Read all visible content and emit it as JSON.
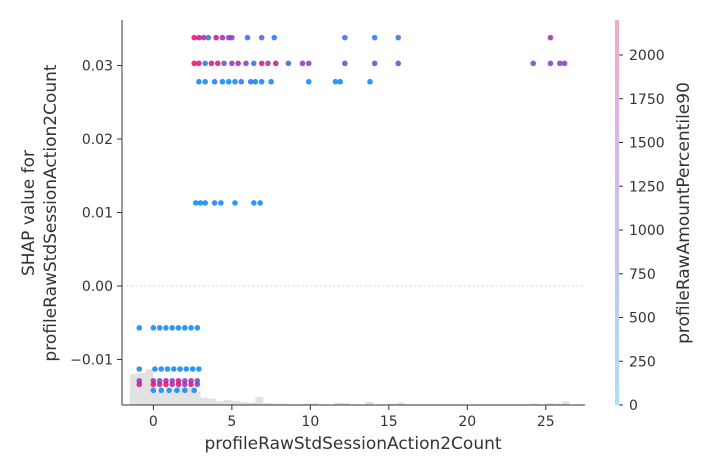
{
  "chart_data": {
    "type": "scatter",
    "title": "",
    "xlabel": "profileRawStdSessionAction2Count",
    "ylabel_line1": "SHAP value for",
    "ylabel_line2": "profileRawStdSessionAction2Count",
    "colorbar_label": "profileRawAmountPercentile90",
    "xlim": [
      -2.0,
      27.5
    ],
    "ylim": [
      -0.0162,
      0.0362
    ],
    "x_ticks": [
      0,
      5,
      10,
      15,
      20,
      25
    ],
    "x_tick_labels": [
      "0",
      "5",
      "10",
      "15",
      "20",
      "25"
    ],
    "y_ticks": [
      -0.01,
      0.0,
      0.01,
      0.02,
      0.03
    ],
    "y_tick_labels": [
      "−0.01",
      "0.00",
      "0.01",
      "0.02",
      "0.03"
    ],
    "zero_line": 0.0,
    "colorbar": {
      "range": [
        0,
        2200
      ],
      "ticks": [
        0,
        250,
        500,
        750,
        1000,
        1250,
        1500,
        1750,
        2000
      ],
      "tick_labels": [
        "0",
        "250",
        "500",
        "750",
        "1000",
        "1250",
        "1500",
        "1750",
        "2000"
      ]
    },
    "colors": {
      "low": "#008bfb",
      "mid": "#8b35c4",
      "high": "#ff0052",
      "hist": "#e2e2e2",
      "axis": "#333333",
      "zero_line": "#cccccc"
    },
    "histogram": [
      {
        "x0": -1.5,
        "x1": -1.0,
        "frac": 0.5
      },
      {
        "x0": -1.0,
        "x1": -0.5,
        "frac": 0.52
      },
      {
        "x0": -0.5,
        "x1": 0.0,
        "frac": 0.58
      },
      {
        "x0": 0.0,
        "x1": 0.5,
        "frac": 0.22
      },
      {
        "x0": 0.5,
        "x1": 1.0,
        "frac": 0.22
      },
      {
        "x0": 1.0,
        "x1": 1.5,
        "frac": 0.26
      },
      {
        "x0": 1.5,
        "x1": 2.0,
        "frac": 0.3
      },
      {
        "x0": 2.0,
        "x1": 2.5,
        "frac": 0.28
      },
      {
        "x0": 2.5,
        "x1": 3.0,
        "frac": 0.22
      },
      {
        "x0": 3.0,
        "x1": 3.5,
        "frac": 0.12
      },
      {
        "x0": 3.5,
        "x1": 4.0,
        "frac": 0.1
      },
      {
        "x0": 4.0,
        "x1": 4.5,
        "frac": 0.06
      },
      {
        "x0": 4.5,
        "x1": 5.0,
        "frac": 0.08
      },
      {
        "x0": 5.0,
        "x1": 5.5,
        "frac": 0.07
      },
      {
        "x0": 5.5,
        "x1": 6.0,
        "frac": 0.05
      },
      {
        "x0": 6.0,
        "x1": 6.5,
        "frac": 0.04
      },
      {
        "x0": 6.5,
        "x1": 7.0,
        "frac": 0.13
      },
      {
        "x0": 7.0,
        "x1": 7.5,
        "frac": 0.03
      },
      {
        "x0": 7.5,
        "x1": 8.0,
        "frac": 0.02
      },
      {
        "x0": 8.0,
        "x1": 8.5,
        "frac": 0.02
      },
      {
        "x0": 9.5,
        "x1": 10.0,
        "frac": 0.02
      },
      {
        "x0": 10.0,
        "x1": 10.5,
        "frac": 0.03
      },
      {
        "x0": 11.5,
        "x1": 12.0,
        "frac": 0.04
      },
      {
        "x0": 12.0,
        "x1": 12.5,
        "frac": 0.03
      },
      {
        "x0": 13.5,
        "x1": 14.0,
        "frac": 0.05
      },
      {
        "x0": 15.0,
        "x1": 15.5,
        "frac": 0.02
      },
      {
        "x0": 15.5,
        "x1": 16.0,
        "frac": 0.04
      },
      {
        "x0": 24.0,
        "x1": 24.5,
        "frac": 0.02
      },
      {
        "x0": 25.0,
        "x1": 25.5,
        "frac": 0.03
      },
      {
        "x0": 25.5,
        "x1": 26.0,
        "frac": 0.02
      },
      {
        "x0": 26.0,
        "x1": 26.5,
        "frac": 0.06
      }
    ],
    "points": [
      {
        "x": 2.6,
        "y": 0.0338,
        "c": 2000
      },
      {
        "x": 2.9,
        "y": 0.0338,
        "c": 1700
      },
      {
        "x": 3.2,
        "y": 0.0338,
        "c": 1500
      },
      {
        "x": 3.5,
        "y": 0.0338,
        "c": 600
      },
      {
        "x": 4.0,
        "y": 0.0338,
        "c": 1800
      },
      {
        "x": 4.4,
        "y": 0.0338,
        "c": 1300
      },
      {
        "x": 4.8,
        "y": 0.0338,
        "c": 1100
      },
      {
        "x": 5.0,
        "y": 0.0338,
        "c": 900
      },
      {
        "x": 6.0,
        "y": 0.0338,
        "c": 400
      },
      {
        "x": 6.9,
        "y": 0.0338,
        "c": 500
      },
      {
        "x": 7.7,
        "y": 0.0338,
        "c": 300
      },
      {
        "x": 12.2,
        "y": 0.0338,
        "c": 300
      },
      {
        "x": 14.1,
        "y": 0.0338,
        "c": 250
      },
      {
        "x": 15.6,
        "y": 0.0338,
        "c": 350
      },
      {
        "x": 25.3,
        "y": 0.0338,
        "c": 1300
      },
      {
        "x": 2.6,
        "y": 0.0303,
        "c": 2000
      },
      {
        "x": 2.9,
        "y": 0.0303,
        "c": 1900
      },
      {
        "x": 3.3,
        "y": 0.0303,
        "c": 200
      },
      {
        "x": 3.7,
        "y": 0.0303,
        "c": 1800
      },
      {
        "x": 4.1,
        "y": 0.0303,
        "c": 2000
      },
      {
        "x": 4.5,
        "y": 0.0303,
        "c": 900
      },
      {
        "x": 5.0,
        "y": 0.0303,
        "c": 1000
      },
      {
        "x": 5.4,
        "y": 0.0303,
        "c": 1400
      },
      {
        "x": 5.9,
        "y": 0.0303,
        "c": 1000
      },
      {
        "x": 6.4,
        "y": 0.0303,
        "c": 300
      },
      {
        "x": 6.9,
        "y": 0.0303,
        "c": 2000
      },
      {
        "x": 7.3,
        "y": 0.0303,
        "c": 1200
      },
      {
        "x": 7.8,
        "y": 0.0303,
        "c": 1900
      },
      {
        "x": 8.6,
        "y": 0.0303,
        "c": 700
      },
      {
        "x": 9.5,
        "y": 0.0303,
        "c": 1200
      },
      {
        "x": 9.9,
        "y": 0.0303,
        "c": 1000
      },
      {
        "x": 12.2,
        "y": 0.0303,
        "c": 1000
      },
      {
        "x": 14.1,
        "y": 0.0303,
        "c": 1000
      },
      {
        "x": 15.6,
        "y": 0.0303,
        "c": 1000
      },
      {
        "x": 24.2,
        "y": 0.0303,
        "c": 1000
      },
      {
        "x": 25.3,
        "y": 0.0303,
        "c": 1000
      },
      {
        "x": 25.9,
        "y": 0.0303,
        "c": 1000
      },
      {
        "x": 26.2,
        "y": 0.0303,
        "c": 1000
      },
      {
        "x": 2.9,
        "y": 0.0278,
        "c": 100
      },
      {
        "x": 3.3,
        "y": 0.0278,
        "c": 50
      },
      {
        "x": 3.9,
        "y": 0.0278,
        "c": 200
      },
      {
        "x": 4.4,
        "y": 0.0278,
        "c": 100
      },
      {
        "x": 4.8,
        "y": 0.0278,
        "c": 50
      },
      {
        "x": 5.2,
        "y": 0.0278,
        "c": 50
      },
      {
        "x": 5.6,
        "y": 0.0278,
        "c": 300
      },
      {
        "x": 6.2,
        "y": 0.0278,
        "c": 200
      },
      {
        "x": 6.5,
        "y": 0.0278,
        "c": 100
      },
      {
        "x": 6.9,
        "y": 0.0278,
        "c": 100
      },
      {
        "x": 7.5,
        "y": 0.0278,
        "c": 50
      },
      {
        "x": 9.9,
        "y": 0.0278,
        "c": 50
      },
      {
        "x": 11.6,
        "y": 0.0278,
        "c": 50
      },
      {
        "x": 11.9,
        "y": 0.0278,
        "c": 100
      },
      {
        "x": 13.8,
        "y": 0.0278,
        "c": 50
      },
      {
        "x": 2.7,
        "y": 0.0113,
        "c": 50
      },
      {
        "x": 3.0,
        "y": 0.0113,
        "c": 50
      },
      {
        "x": 3.3,
        "y": 0.0113,
        "c": 100
      },
      {
        "x": 3.9,
        "y": 0.0113,
        "c": 200
      },
      {
        "x": 4.3,
        "y": 0.0113,
        "c": 50
      },
      {
        "x": 5.2,
        "y": 0.0113,
        "c": 50
      },
      {
        "x": 6.4,
        "y": 0.0113,
        "c": 100
      },
      {
        "x": 6.8,
        "y": 0.0113,
        "c": 50
      },
      {
        "x": -0.9,
        "y": -0.0057,
        "c": 50
      },
      {
        "x": 0.0,
        "y": -0.0057,
        "c": 50
      },
      {
        "x": 0.4,
        "y": -0.0057,
        "c": 50
      },
      {
        "x": 0.8,
        "y": -0.0057,
        "c": 100
      },
      {
        "x": 1.2,
        "y": -0.0057,
        "c": 50
      },
      {
        "x": 1.6,
        "y": -0.0057,
        "c": 50
      },
      {
        "x": 2.0,
        "y": -0.0057,
        "c": 50
      },
      {
        "x": 2.4,
        "y": -0.0057,
        "c": 50
      },
      {
        "x": 2.8,
        "y": -0.0057,
        "c": 50
      },
      {
        "x": -0.9,
        "y": -0.0113,
        "c": 50
      },
      {
        "x": 0.1,
        "y": -0.0113,
        "c": 100
      },
      {
        "x": 0.5,
        "y": -0.0113,
        "c": 50
      },
      {
        "x": 0.9,
        "y": -0.0113,
        "c": 50
      },
      {
        "x": 1.3,
        "y": -0.0113,
        "c": 200
      },
      {
        "x": 1.7,
        "y": -0.0113,
        "c": 50
      },
      {
        "x": 2.1,
        "y": -0.0113,
        "c": 50
      },
      {
        "x": 2.5,
        "y": -0.0113,
        "c": 100
      },
      {
        "x": 2.9,
        "y": -0.0113,
        "c": 50
      },
      {
        "x": -0.9,
        "y": -0.0129,
        "c": 1000
      },
      {
        "x": 0.0,
        "y": -0.0129,
        "c": 1200
      },
      {
        "x": 0.4,
        "y": -0.0129,
        "c": 800
      },
      {
        "x": 0.8,
        "y": -0.0129,
        "c": 1600
      },
      {
        "x": 1.2,
        "y": -0.0129,
        "c": 1100
      },
      {
        "x": 1.6,
        "y": -0.0129,
        "c": 1800
      },
      {
        "x": 2.0,
        "y": -0.0129,
        "c": 1000
      },
      {
        "x": 2.4,
        "y": -0.0129,
        "c": 1400
      },
      {
        "x": 2.8,
        "y": -0.0129,
        "c": 900
      },
      {
        "x": -0.9,
        "y": -0.0134,
        "c": 1700
      },
      {
        "x": 0.0,
        "y": -0.0134,
        "c": 1900
      },
      {
        "x": 0.4,
        "y": -0.0134,
        "c": 1500
      },
      {
        "x": 0.8,
        "y": -0.0134,
        "c": 2000
      },
      {
        "x": 1.2,
        "y": -0.0134,
        "c": 1300
      },
      {
        "x": 1.6,
        "y": -0.0134,
        "c": 1900
      },
      {
        "x": 2.0,
        "y": -0.0134,
        "c": 1200
      },
      {
        "x": 2.4,
        "y": -0.0134,
        "c": 1700
      },
      {
        "x": 2.8,
        "y": -0.0134,
        "c": 1000
      },
      {
        "x": 0.0,
        "y": -0.0142,
        "c": 50
      },
      {
        "x": 0.5,
        "y": -0.0142,
        "c": 100
      },
      {
        "x": 1.0,
        "y": -0.0142,
        "c": 50
      },
      {
        "x": 1.5,
        "y": -0.0142,
        "c": 50
      },
      {
        "x": 2.0,
        "y": -0.0142,
        "c": 100
      },
      {
        "x": 2.6,
        "y": -0.0142,
        "c": 50
      }
    ]
  }
}
